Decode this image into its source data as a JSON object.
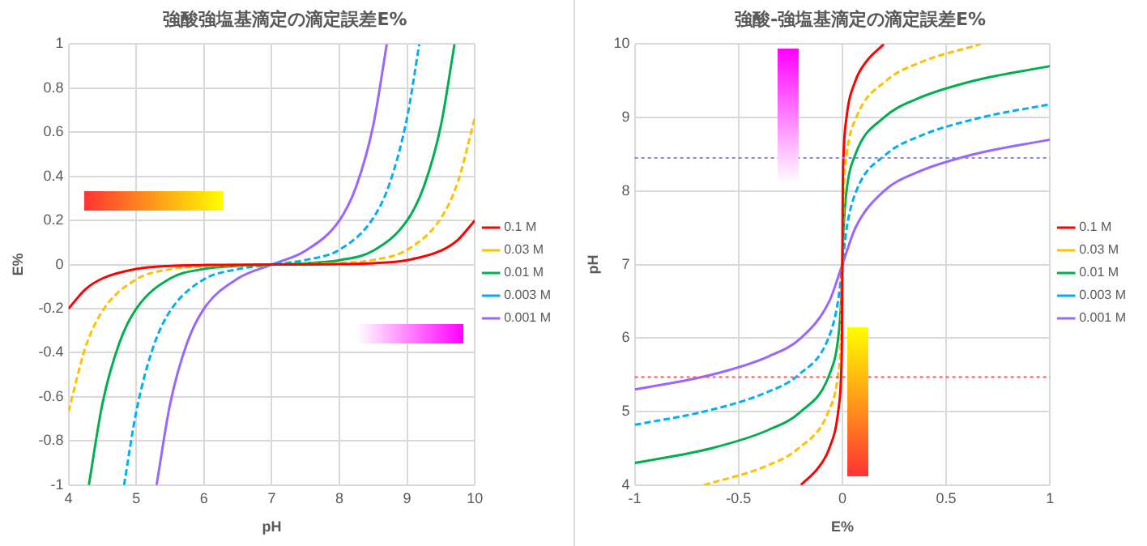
{
  "chart_data": [
    {
      "type": "line",
      "title": "強酸強塩基滴定の滴定誤差E%",
      "xlabel": "pH",
      "ylabel": "E%",
      "xlim": [
        4,
        10
      ],
      "ylim": [
        -1,
        1
      ],
      "xticks": [
        4,
        5,
        6,
        7,
        8,
        9,
        10
      ],
      "yticks": [
        -1,
        -0.8,
        -0.6,
        -0.4,
        -0.2,
        0,
        0.2,
        0.4,
        0.6,
        0.8,
        1
      ],
      "grid": true,
      "legend": "right",
      "series": [
        {
          "name": "0.1 M",
          "color": "#ff0000",
          "line_style": "solid",
          "x": [
            4,
            4.25,
            4.5,
            5,
            5.5,
            6,
            7,
            8,
            8.5,
            9,
            9.5,
            9.75,
            10
          ],
          "values": [
            -0.2,
            -0.112,
            -0.063,
            -0.02,
            -0.006,
            -0.002,
            0,
            0.002,
            0.006,
            0.02,
            0.063,
            0.112,
            0.2
          ]
        },
        {
          "name": "0.03 M",
          "color": "#ffc000",
          "line_style": "dashed",
          "x": [
            4,
            4.25,
            4.5,
            5,
            5.5,
            6,
            7,
            8,
            8.5,
            9,
            9.5,
            9.75,
            10
          ],
          "values": [
            -0.667,
            -0.375,
            -0.211,
            -0.067,
            -0.021,
            -0.007,
            0,
            0.007,
            0.021,
            0.067,
            0.211,
            0.375,
            0.667
          ]
        },
        {
          "name": "0.01 M",
          "color": "#00b050",
          "line_style": "solid",
          "x": [
            4.3,
            4.5,
            4.75,
            5,
            5.5,
            6,
            6.5,
            7,
            7.5,
            8,
            8.5,
            9,
            9.25,
            9.5,
            9.7
          ],
          "values": [
            -1,
            -0.632,
            -0.356,
            -0.2,
            -0.063,
            -0.02,
            -0.006,
            0,
            0.006,
            0.02,
            0.063,
            0.2,
            0.356,
            0.632,
            1
          ]
        },
        {
          "name": "0.003 M",
          "color": "#00b0f0",
          "line_style": "dashed",
          "x": [
            4.82,
            5,
            5.25,
            5.5,
            6,
            6.5,
            7,
            7.5,
            8,
            8.5,
            8.75,
            9,
            9.18
          ],
          "values": [
            -1,
            -0.667,
            -0.375,
            -0.211,
            -0.067,
            -0.021,
            0,
            0.021,
            0.067,
            0.211,
            0.375,
            0.667,
            1
          ]
        },
        {
          "name": "0.001 M",
          "color": "#9966ff",
          "line_style": "solid",
          "x": [
            5.3,
            5.5,
            5.75,
            6,
            6.5,
            7,
            7.5,
            8,
            8.25,
            8.5,
            8.7
          ],
          "values": [
            -1,
            -0.632,
            -0.356,
            -0.2,
            -0.063,
            0,
            0.063,
            0.2,
            0.356,
            0.632,
            1
          ]
        }
      ]
    },
    {
      "type": "line",
      "title": "強酸-強塩基滴定の滴定誤差E%",
      "xlabel": "E%",
      "ylabel": "pH",
      "xlim": [
        -1,
        1
      ],
      "ylim": [
        4,
        10
      ],
      "xticks": [
        -1,
        -0.5,
        0,
        0.5,
        1
      ],
      "yticks": [
        4,
        5,
        6,
        7,
        8,
        9,
        10
      ],
      "grid": true,
      "legend": "right",
      "ref_lines": [
        {
          "axis": "y",
          "value": 8.45,
          "color": "#8888dd",
          "line_style": "dotted"
        },
        {
          "axis": "y",
          "value": 5.47,
          "color": "#ff5555",
          "line_style": "dotted"
        }
      ],
      "series": [
        {
          "name": "0.1 M",
          "color": "#ff0000",
          "line_style": "solid",
          "x": [
            -0.2,
            -0.112,
            -0.063,
            -0.02,
            -0.006,
            -0.002,
            0,
            0.002,
            0.006,
            0.02,
            0.063,
            0.112,
            0.2
          ],
          "values": [
            4,
            4.25,
            4.5,
            5,
            5.5,
            6,
            7,
            8,
            8.5,
            9,
            9.5,
            9.75,
            10
          ]
        },
        {
          "name": "0.03 M",
          "color": "#ffc000",
          "line_style": "dashed",
          "x": [
            -0.667,
            -0.375,
            -0.211,
            -0.067,
            -0.021,
            -0.007,
            0,
            0.007,
            0.021,
            0.067,
            0.211,
            0.375,
            0.667
          ],
          "values": [
            4,
            4.25,
            4.5,
            5,
            5.5,
            6,
            7,
            8,
            8.5,
            9,
            9.5,
            9.75,
            10
          ]
        },
        {
          "name": "0.01 M",
          "color": "#00b050",
          "line_style": "solid",
          "x": [
            -1,
            -0.632,
            -0.356,
            -0.2,
            -0.063,
            -0.02,
            -0.006,
            0,
            0.006,
            0.02,
            0.063,
            0.2,
            0.356,
            0.632,
            1
          ],
          "values": [
            4.3,
            4.5,
            4.75,
            5,
            5.5,
            6,
            6.5,
            7,
            7.5,
            8,
            8.5,
            9,
            9.25,
            9.5,
            9.7
          ]
        },
        {
          "name": "0.003 M",
          "color": "#00b0f0",
          "line_style": "dashed",
          "x": [
            -1,
            -0.667,
            -0.375,
            -0.211,
            -0.067,
            -0.021,
            0,
            0.021,
            0.067,
            0.211,
            0.375,
            0.667,
            1
          ],
          "values": [
            4.82,
            5,
            5.25,
            5.5,
            6,
            6.5,
            7,
            7.5,
            8,
            8.5,
            8.75,
            9,
            9.18
          ]
        },
        {
          "name": "0.001 M",
          "color": "#9966ff",
          "line_style": "solid",
          "x": [
            -1,
            -0.632,
            -0.356,
            -0.2,
            -0.063,
            0,
            0.063,
            0.2,
            0.356,
            0.632,
            1
          ],
          "values": [
            5.3,
            5.5,
            5.75,
            6,
            6.5,
            7,
            7.5,
            8,
            8.25,
            8.5,
            8.7
          ]
        }
      ]
    }
  ]
}
